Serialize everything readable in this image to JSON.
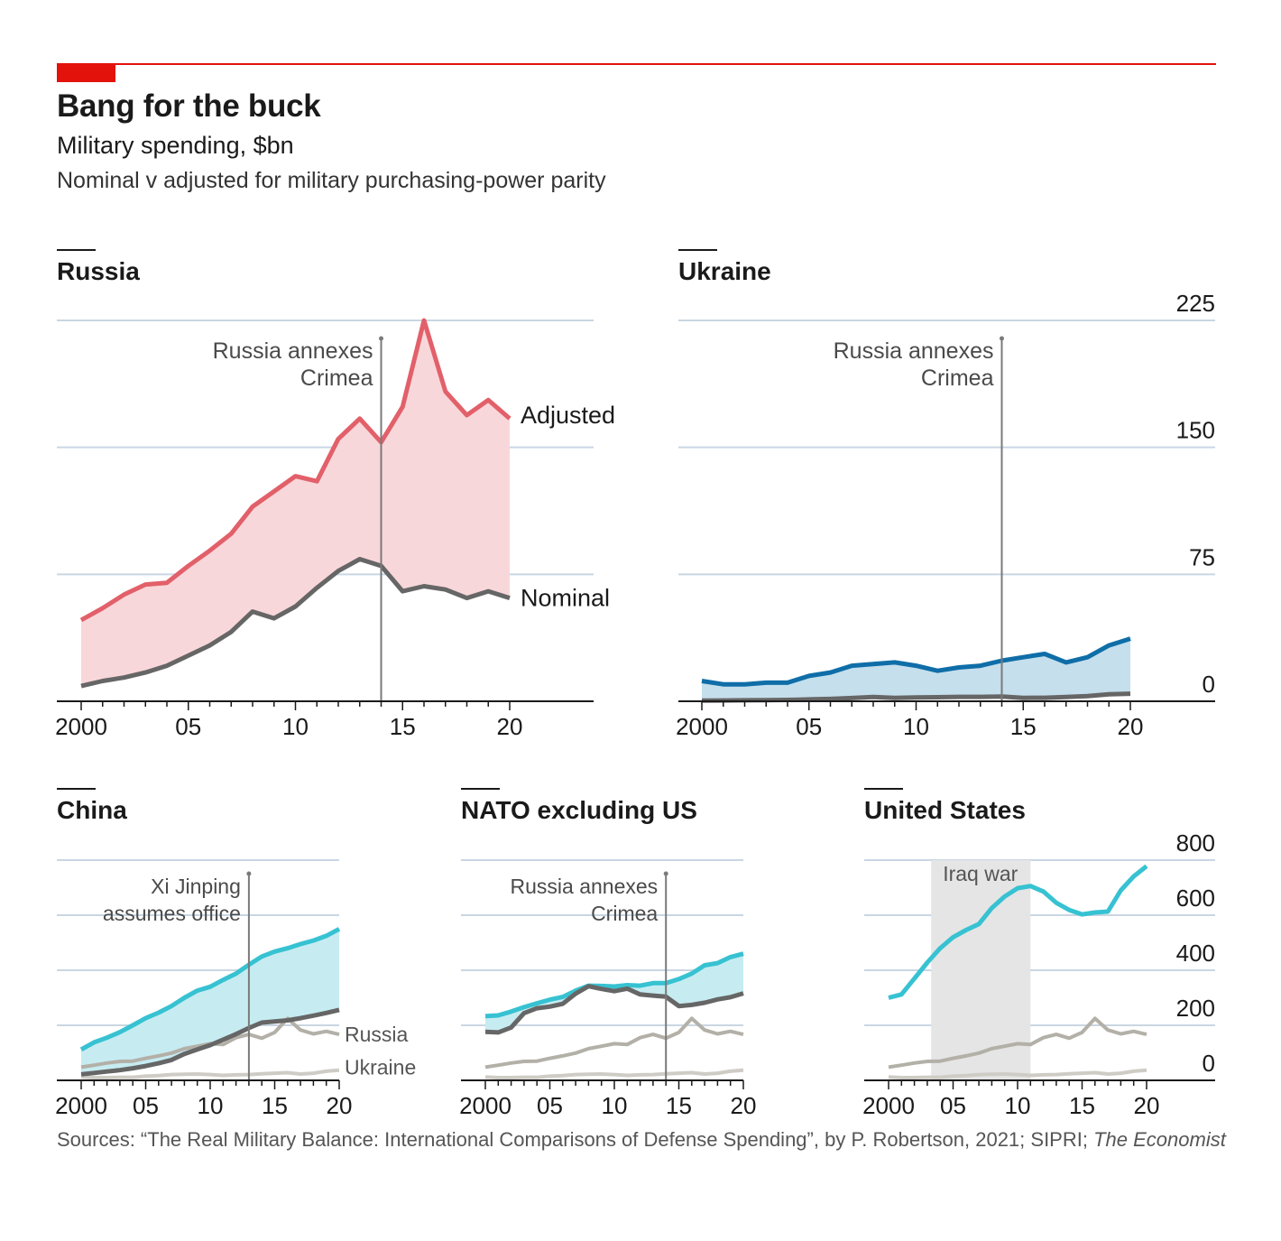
{
  "header": {
    "title": "Bang for the buck",
    "subtitle": "Military spending, $bn",
    "description": "Nominal v adjusted for military purchasing-power parity"
  },
  "source": {
    "text": "Sources: “The Real Military Balance: International Comparisons of Defense Spending”, by P. Robertson, 2021; SIPRI;",
    "italic": "The Economist"
  },
  "colors": {
    "accent": "#e3120b",
    "russia_adjusted": "#e2606a",
    "russia_fill": "#f8d7da",
    "nominal": "#666666",
    "ukraine_adjusted": "#0f6ea8",
    "ukraine_fill": "#c5dfec",
    "china_adjusted": "#37c2d2",
    "china_fill": "#c6ecf1",
    "ref_russia": "#b3b0a8",
    "ref_ukraine": "#cfccc6",
    "gridline": "#c9d6e3",
    "shade": "#e5e5e5"
  },
  "chart_data": [
    {
      "id": "russia",
      "type": "area",
      "title": "Russia",
      "x": [
        2000,
        2001,
        2002,
        2003,
        2004,
        2005,
        2006,
        2007,
        2008,
        2009,
        2010,
        2011,
        2012,
        2013,
        2014,
        2015,
        2016,
        2017,
        2018,
        2019,
        2020
      ],
      "series": [
        {
          "name": "Adjusted",
          "values": [
            48,
            55,
            63,
            69,
            70,
            80,
            89,
            99,
            115,
            124,
            133,
            130,
            155,
            167,
            153,
            174,
            225,
            183,
            169,
            178,
            167
          ]
        },
        {
          "name": "Nominal",
          "values": [
            9,
            12,
            14,
            17,
            21,
            27,
            33,
            41,
            53,
            49,
            56,
            67,
            77,
            84,
            80,
            65,
            68,
            66,
            61,
            65,
            61
          ]
        }
      ],
      "series_labels": [
        "Adjusted",
        "Nominal"
      ],
      "ylim": [
        0,
        225
      ],
      "y_gridlines": [
        75,
        150,
        225
      ],
      "xticks": [
        "2000",
        "05",
        "10",
        "15",
        "20"
      ],
      "annotation": {
        "x": 2014,
        "lines": [
          "Russia annexes",
          "Crimea"
        ]
      }
    },
    {
      "id": "ukraine",
      "type": "area",
      "title": "Ukraine",
      "x": [
        2000,
        2001,
        2002,
        2003,
        2004,
        2005,
        2006,
        2007,
        2008,
        2009,
        2010,
        2011,
        2012,
        2013,
        2014,
        2015,
        2016,
        2017,
        2018,
        2019,
        2020
      ],
      "series": [
        {
          "name": "Adjusted",
          "values": [
            12,
            10,
            10,
            11,
            11,
            15,
            17,
            21,
            22,
            23,
            21,
            18,
            20,
            21,
            24,
            26,
            28,
            23,
            26,
            33,
            37
          ]
        },
        {
          "name": "Nominal",
          "values": [
            0.4,
            0.5,
            0.6,
            0.7,
            0.8,
            1.1,
            1.4,
            1.9,
            2.5,
            2.0,
            2.3,
            2.4,
            2.6,
            2.6,
            2.8,
            2.0,
            2.1,
            2.5,
            3.1,
            4.1,
            4.5
          ]
        }
      ],
      "ylim": [
        0,
        225
      ],
      "y_ticks": [
        0,
        75,
        150,
        225
      ],
      "xticks": [
        "2000",
        "05",
        "10",
        "15",
        "20"
      ],
      "annotation": {
        "x": 2014,
        "lines": [
          "Russia annexes",
          "Crimea"
        ]
      }
    },
    {
      "id": "china",
      "type": "area",
      "title": "China",
      "x": [
        2000,
        2001,
        2002,
        2003,
        2004,
        2005,
        2006,
        2007,
        2008,
        2009,
        2010,
        2011,
        2012,
        2013,
        2014,
        2015,
        2016,
        2017,
        2018,
        2019,
        2020
      ],
      "series": [
        {
          "name": "Adjusted",
          "values": [
            112,
            138,
            155,
            175,
            200,
            226,
            246,
            270,
            300,
            326,
            340,
            365,
            388,
            420,
            450,
            468,
            480,
            495,
            508,
            525,
            550
          ]
        },
        {
          "name": "Nominal",
          "values": [
            22,
            27,
            32,
            37,
            44,
            52,
            62,
            74,
            96,
            112,
            128,
            148,
            168,
            190,
            210,
            214,
            218,
            226,
            235,
            245,
            256
          ]
        },
        {
          "name": "Russia",
          "values": [
            48,
            55,
            63,
            69,
            70,
            80,
            89,
            99,
            115,
            124,
            133,
            130,
            155,
            167,
            153,
            174,
            225,
            183,
            169,
            178,
            167
          ]
        },
        {
          "name": "Ukraine",
          "values": [
            12,
            10,
            10,
            11,
            11,
            15,
            17,
            21,
            22,
            23,
            21,
            18,
            20,
            21,
            24,
            26,
            28,
            23,
            26,
            33,
            37
          ]
        }
      ],
      "series_labels": [
        "Russia",
        "Ukraine"
      ],
      "ylim": [
        0,
        800
      ],
      "y_gridlines": [
        200,
        400,
        600,
        800
      ],
      "xticks": [
        "2000",
        "05",
        "10",
        "15",
        "20"
      ],
      "annotation": {
        "x": 2013,
        "lines": [
          "Xi Jinping",
          "assumes office"
        ]
      }
    },
    {
      "id": "nato",
      "type": "area",
      "title": "NATO excluding US",
      "x": [
        2000,
        2001,
        2002,
        2003,
        2004,
        2005,
        2006,
        2007,
        2008,
        2009,
        2010,
        2011,
        2012,
        2013,
        2014,
        2015,
        2016,
        2017,
        2018,
        2019,
        2020
      ],
      "series": [
        {
          "name": "Adjusted",
          "values": [
            233,
            236,
            250,
            266,
            280,
            293,
            303,
            326,
            344,
            343,
            341,
            346,
            344,
            353,
            353,
            368,
            388,
            418,
            426,
            448,
            460
          ]
        },
        {
          "name": "Nominal",
          "values": [
            176,
            174,
            192,
            244,
            262,
            268,
            278,
            315,
            342,
            332,
            324,
            333,
            312,
            308,
            304,
            270,
            274,
            282,
            294,
            302,
            316
          ]
        },
        {
          "name": "Russia",
          "values": [
            48,
            55,
            63,
            69,
            70,
            80,
            89,
            99,
            115,
            124,
            133,
            130,
            155,
            167,
            153,
            174,
            225,
            183,
            169,
            178,
            167
          ]
        },
        {
          "name": "Ukraine",
          "values": [
            12,
            10,
            10,
            11,
            11,
            15,
            17,
            21,
            22,
            23,
            21,
            18,
            20,
            21,
            24,
            26,
            28,
            23,
            26,
            33,
            37
          ]
        }
      ],
      "ylim": [
        0,
        800
      ],
      "y_gridlines": [
        200,
        400,
        600,
        800
      ],
      "xticks": [
        "2000",
        "05",
        "10",
        "15",
        "20"
      ],
      "annotation": {
        "x": 2014,
        "lines": [
          "Russia annexes",
          "Crimea"
        ]
      }
    },
    {
      "id": "us",
      "type": "line",
      "title": "United States",
      "x": [
        2000,
        2001,
        2002,
        2003,
        2004,
        2005,
        2006,
        2007,
        2008,
        2009,
        2010,
        2011,
        2012,
        2013,
        2014,
        2015,
        2016,
        2017,
        2018,
        2019,
        2020
      ],
      "series": [
        {
          "name": "United States",
          "values": [
            300,
            312,
            370,
            428,
            480,
            520,
            546,
            568,
            626,
            668,
            698,
            706,
            686,
            645,
            619,
            603,
            610,
            613,
            690,
            741,
            778
          ]
        },
        {
          "name": "Russia",
          "values": [
            48,
            55,
            63,
            69,
            70,
            80,
            89,
            99,
            115,
            124,
            133,
            130,
            155,
            167,
            153,
            174,
            225,
            183,
            169,
            178,
            167
          ]
        },
        {
          "name": "Ukraine",
          "values": [
            12,
            10,
            10,
            11,
            11,
            15,
            17,
            21,
            22,
            23,
            21,
            18,
            20,
            21,
            24,
            26,
            28,
            23,
            26,
            33,
            37
          ]
        }
      ],
      "ylim": [
        0,
        800
      ],
      "y_ticks": [
        0,
        200,
        400,
        600,
        800
      ],
      "xticks": [
        "2000",
        "05",
        "10",
        "15",
        "20"
      ],
      "shaded_region": {
        "from": 2003.3,
        "to": 2011,
        "label": "Iraq war"
      }
    }
  ]
}
